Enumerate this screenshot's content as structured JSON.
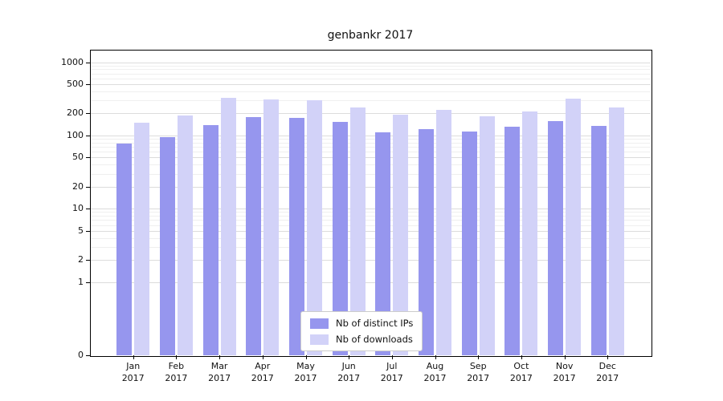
{
  "chart_data": {
    "type": "bar",
    "title": "genbankr 2017",
    "y_scale": "log",
    "y_ticks": [
      0,
      1,
      2,
      5,
      10,
      20,
      50,
      100,
      200,
      500,
      1000
    ],
    "ylim_top": 1500,
    "grid": true,
    "legend_position": "bottom-center",
    "categories": [
      {
        "month": "Jan",
        "year": "2017"
      },
      {
        "month": "Feb",
        "year": "2017"
      },
      {
        "month": "Mar",
        "year": "2017"
      },
      {
        "month": "Apr",
        "year": "2017"
      },
      {
        "month": "May",
        "year": "2017"
      },
      {
        "month": "Jun",
        "year": "2017"
      },
      {
        "month": "Jul",
        "year": "2017"
      },
      {
        "month": "Aug",
        "year": "2017"
      },
      {
        "month": "Sep",
        "year": "2017"
      },
      {
        "month": "Oct",
        "year": "2017"
      },
      {
        "month": "Nov",
        "year": "2017"
      },
      {
        "month": "Dec",
        "year": "2017"
      }
    ],
    "series": [
      {
        "name": "Nb of distinct IPs",
        "color": "#9696ee",
        "values": [
          78,
          96,
          140,
          178,
          176,
          155,
          110,
          122,
          113,
          131,
          158,
          136
        ]
      },
      {
        "name": "Nb of downloads",
        "color": "#d2d2f8",
        "values": [
          150,
          186,
          330,
          312,
          302,
          240,
          193,
          221,
          181,
          212,
          315,
          242
        ]
      }
    ]
  }
}
